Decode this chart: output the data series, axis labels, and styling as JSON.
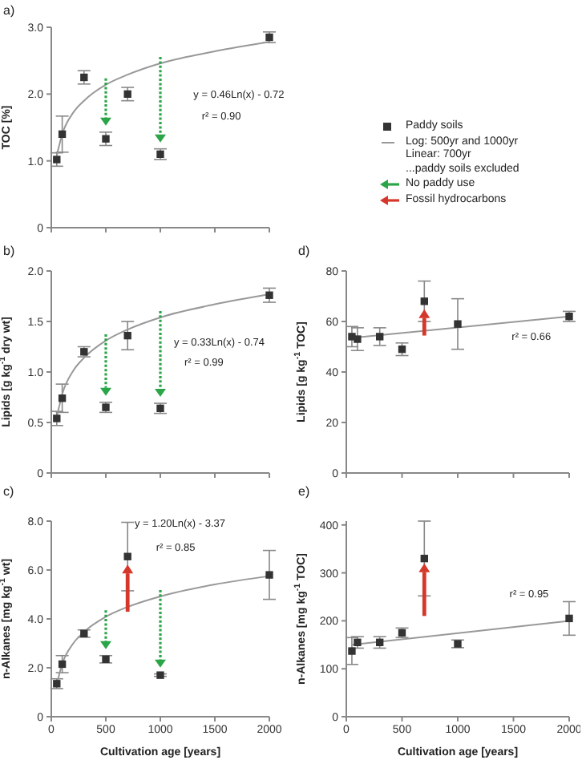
{
  "chart_data": [
    {
      "type": "scatter",
      "title": "a)",
      "ylabel": "TOC [%]",
      "xlim": [
        0,
        2000
      ],
      "xticks": [
        0,
        500,
        1000,
        1500,
        2000
      ],
      "ylim": [
        0,
        3
      ],
      "yticks": [
        0,
        {
          "value": 1,
          "label": "1.0"
        },
        {
          "value": 2,
          "label": "2.0"
        },
        {
          "value": 3,
          "label": "3.0"
        }
      ],
      "tick_labels": "y",
      "legend": "right",
      "annotations": [
        "y = 0.46Ln(x) - 0.72",
        "r² = 0.90",
        "No paddy use",
        "Fossil hydrocarbons"
      ],
      "series": [
        {
          "name": "Paddy soils",
          "marker": "square",
          "color": "#333333",
          "x": [
            50,
            100,
            300,
            500,
            700,
            1000,
            2000
          ],
          "values": [
            1.02,
            1.4,
            2.25,
            1.33,
            2.0,
            1.1,
            2.85
          ],
          "errors": [
            0.1,
            0.27,
            0.1,
            0.1,
            0.1,
            0.08,
            0.08
          ]
        },
        {
          "name": "Log: 500yr and 1000yr\nLinear: 700yr\n...paddy soils excluded",
          "type": "line",
          "marker": "none",
          "color": "#999999",
          "x": [
            50,
            100,
            200,
            300,
            500,
            700,
            1000,
            1500,
            2000
          ],
          "values": [
            1.08,
            1.4,
            1.72,
            1.9,
            2.14,
            2.29,
            2.46,
            2.64,
            2.78
          ]
        }
      ]
    },
    {
      "type": "scatter",
      "title": "b)",
      "ylabel": "Lipids [g kg$^{-1}$ dry wt]",
      "xlim": [
        0,
        2000
      ],
      "xticks": [
        0,
        500,
        1000,
        1500,
        2000
      ],
      "ylim": [
        0,
        2
      ],
      "yticks": [
        0,
        0.5,
        {
          "value": 1,
          "label": "1.0"
        },
        1.5,
        {
          "value": 2,
          "label": "2.0"
        }
      ],
      "tick_labels": "y",
      "annotations": [
        "y = 0.33Ln(x) - 0.74",
        "r² = 0.99"
      ],
      "series": [
        {
          "marker": "square",
          "color": "#333333",
          "x": [
            50,
            100,
            300,
            500,
            700,
            1000,
            2000
          ],
          "values": [
            0.54,
            0.74,
            1.2,
            0.65,
            1.36,
            0.64,
            1.76
          ],
          "errors": [
            0.07,
            0.14,
            0.05,
            0.05,
            0.14,
            0.05,
            0.07
          ]
        },
        {
          "type": "line",
          "marker": "none",
          "color": "#999999",
          "x": [
            50,
            100,
            200,
            300,
            500,
            700,
            1000,
            1500,
            2000
          ],
          "values": [
            0.55,
            0.78,
            1.01,
            1.14,
            1.31,
            1.42,
            1.54,
            1.67,
            1.77
          ]
        }
      ]
    },
    {
      "type": "scatter",
      "title": "d)",
      "ylabel": "Lipids [g kg$^{-1}$ TOC]",
      "xlim": [
        0,
        2000
      ],
      "xticks": [
        0,
        500,
        1000,
        1500,
        2000
      ],
      "ylim": [
        0,
        80
      ],
      "yticks": [
        0,
        20,
        40,
        60,
        80
      ],
      "tick_labels": "y",
      "annotations": [
        "r² = 0.66"
      ],
      "series": [
        {
          "marker": "square",
          "color": "#333333",
          "x": [
            50,
            100,
            300,
            500,
            700,
            1000,
            2000
          ],
          "values": [
            54,
            53,
            54,
            49,
            68,
            59,
            62
          ],
          "errors": [
            4,
            4.5,
            3.5,
            2.5,
            8,
            10,
            2
          ]
        },
        {
          "type": "line",
          "marker": "none",
          "color": "#999999",
          "x": [
            50,
            2000
          ],
          "values": [
            53.5,
            62
          ]
        }
      ]
    },
    {
      "type": "scatter",
      "title": "c)",
      "ylabel": "n-Alkanes [mg kg$^{-1}$ wt]",
      "xlabel": "Cultivation age [years]",
      "xlim": [
        0,
        2000
      ],
      "xticks": [
        0,
        500,
        1000,
        1500,
        2000
      ],
      "ylim": [
        0,
        8
      ],
      "yticks": [
        0,
        {
          "value": 2,
          "label": "2.0"
        },
        {
          "value": 4,
          "label": "4.0"
        },
        {
          "value": 6,
          "label": "6.0"
        },
        {
          "value": 8,
          "label": "8.0"
        }
      ],
      "annotations": [
        "y = 1.20Ln(x) - 3.37",
        "r² = 0.85"
      ],
      "series": [
        {
          "marker": "square",
          "color": "#333333",
          "x": [
            50,
            100,
            300,
            500,
            700,
            1000,
            2000
          ],
          "values": [
            1.35,
            2.15,
            3.4,
            2.35,
            6.55,
            1.7,
            5.8
          ],
          "errors": [
            0.2,
            0.35,
            0.15,
            0.15,
            1.4,
            0.05,
            1.0
          ]
        },
        {
          "type": "line",
          "marker": "none",
          "color": "#999999",
          "x": [
            50,
            100,
            200,
            300,
            500,
            700,
            1000,
            1500,
            2000
          ],
          "values": [
            1.32,
            2.16,
            2.99,
            3.47,
            4.09,
            4.49,
            4.92,
            5.41,
            5.75
          ]
        }
      ]
    },
    {
      "type": "scatter",
      "title": "e)",
      "ylabel": "n-Alkanes [mg kg$^{-1}$ TOC]",
      "xlabel": "Cultivation age [years]",
      "xlim": [
        0,
        2000
      ],
      "xticks": [
        0,
        500,
        1000,
        1500,
        2000
      ],
      "ylim": [
        0,
        400
      ],
      "yticks": [
        0,
        100,
        200,
        300,
        400
      ],
      "annotations": [
        "r² = 0.95"
      ],
      "series": [
        {
          "marker": "square",
          "color": "#333333",
          "x": [
            50,
            100,
            300,
            500,
            700,
            1000,
            2000
          ],
          "values": [
            137,
            155,
            155,
            175,
            330,
            152,
            205
          ],
          "errors": [
            28,
            12,
            12,
            10,
            78,
            8,
            35
          ]
        },
        {
          "type": "line",
          "marker": "none",
          "color": "#999999",
          "x": [
            50,
            2000
          ],
          "values": [
            150,
            200
          ]
        }
      ]
    }
  ]
}
